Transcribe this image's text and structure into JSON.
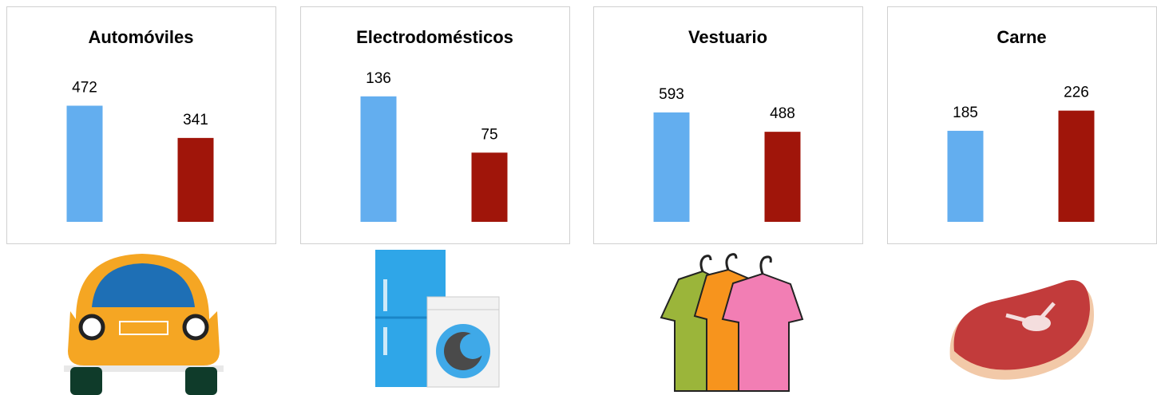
{
  "chart_data": [
    {
      "type": "bar",
      "title": "Automóviles",
      "values": [
        472,
        341
      ],
      "colors": [
        "#63aeef",
        "#a0150a"
      ],
      "ylim": [
        0,
        600
      ]
    },
    {
      "type": "bar",
      "title": "Electrodomésticos",
      "values": [
        136,
        75
      ],
      "colors": [
        "#63aeef",
        "#a0150a"
      ],
      "ylim": [
        0,
        160
      ]
    },
    {
      "type": "bar",
      "title": "Vestuario",
      "values": [
        593,
        488
      ],
      "colors": [
        "#63aeef",
        "#a0150a"
      ],
      "ylim": [
        0,
        800
      ]
    },
    {
      "type": "bar",
      "title": "Carne",
      "values": [
        185,
        226
      ],
      "colors": [
        "#63aeef",
        "#a0150a"
      ],
      "ylim": [
        0,
        300
      ]
    }
  ]
}
